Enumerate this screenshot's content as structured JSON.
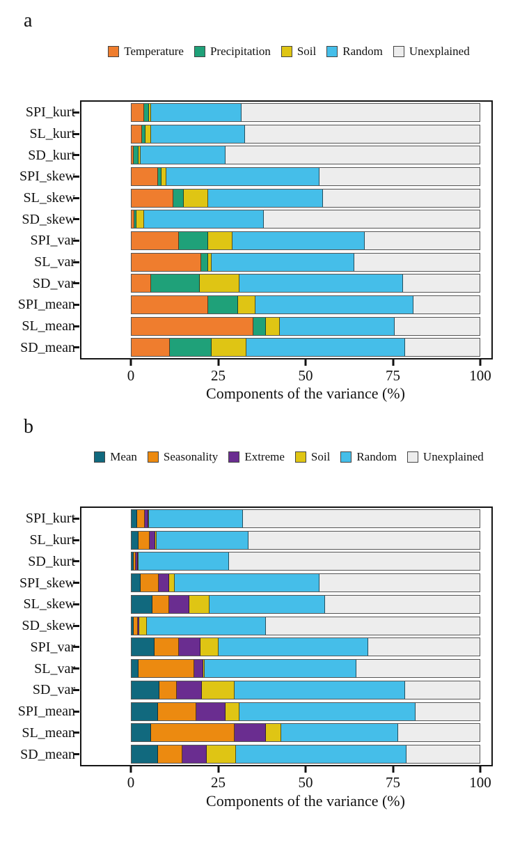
{
  "figure": {
    "panel_a_tag": "a",
    "panel_b_tag": "b"
  },
  "chart_data": [
    {
      "type": "bar",
      "orientation": "horizontal-stacked",
      "panel": "a",
      "xlabel": "Components of the variance (%)",
      "xlim": [
        0,
        100
      ],
      "x_ticks": [
        0,
        25,
        50,
        75,
        100
      ],
      "grid": false,
      "legend_position": "top",
      "categories_top_to_bottom": [
        "SPI_kurt",
        "SL_kurt",
        "SD_kurt",
        "SPI_skew",
        "SL_skew",
        "SD_skew",
        "SPI_var",
        "SL_var",
        "SD_var",
        "SPI_mean",
        "SL_mean",
        "SD_mean"
      ],
      "series": [
        {
          "name": "Temperature",
          "color": "#EF7D2E",
          "values": [
            3.5,
            3.0,
            0.5,
            7.5,
            12.0,
            0.7,
            13.5,
            20.0,
            5.5,
            22.0,
            35.0,
            11.0
          ]
        },
        {
          "name": "Precipitation",
          "color": "#1FA179",
          "values": [
            1.5,
            1.0,
            1.5,
            1.0,
            3.0,
            0.6,
            8.5,
            2.0,
            14.0,
            8.5,
            3.5,
            12.0
          ]
        },
        {
          "name": "Soil",
          "color": "#DFC514",
          "values": [
            0.5,
            1.5,
            0.5,
            1.5,
            7.0,
            2.2,
            7.0,
            1.0,
            11.5,
            5.0,
            4.0,
            10.0
          ]
        },
        {
          "name": "Random",
          "color": "#45BEE9",
          "values": [
            26.0,
            27.0,
            24.5,
            44.0,
            33.0,
            34.5,
            38.0,
            41.0,
            47.0,
            45.5,
            33.0,
            45.5
          ]
        },
        {
          "name": "Unexplained",
          "color": "#EDEDED",
          "values": [
            68.5,
            67.5,
            73.0,
            46.0,
            45.0,
            62.0,
            33.0,
            36.0,
            22.0,
            19.0,
            24.5,
            21.5
          ]
        }
      ]
    },
    {
      "type": "bar",
      "orientation": "horizontal-stacked",
      "panel": "b",
      "xlabel": "Components of the variance (%)",
      "xlim": [
        0,
        100
      ],
      "x_ticks": [
        0,
        25,
        50,
        75,
        100
      ],
      "grid": false,
      "legend_position": "top",
      "categories_top_to_bottom": [
        "SPI_kurt",
        "SL_kurt",
        "SD_kurt",
        "SPI_skew",
        "SL_skew",
        "SD_skew",
        "SPI_var",
        "SL_var",
        "SD_var",
        "SPI_mean",
        "SL_mean",
        "SD_mean"
      ],
      "series": [
        {
          "name": "Mean",
          "color": "#11697E",
          "values": [
            1.5,
            2.0,
            0.6,
            2.5,
            6.0,
            0.5,
            6.5,
            2.0,
            8.0,
            7.5,
            5.5,
            7.5
          ]
        },
        {
          "name": "Seasonality",
          "color": "#EC8A10",
          "values": [
            2.2,
            3.2,
            0.5,
            5.2,
            4.8,
            1.3,
            7.0,
            16.0,
            5.0,
            11.0,
            24.0,
            7.0
          ]
        },
        {
          "name": "Extreme",
          "color": "#6A2D90",
          "values": [
            1.0,
            1.5,
            0.6,
            3.1,
            5.7,
            0.4,
            6.2,
            2.5,
            7.2,
            8.5,
            9.0,
            7.0
          ]
        },
        {
          "name": "Soil",
          "color": "#DFC514",
          "values": [
            0.3,
            0.5,
            0.3,
            1.6,
            5.9,
            2.1,
            5.2,
            0.5,
            9.3,
            4.0,
            4.5,
            8.5
          ]
        },
        {
          "name": "Random",
          "color": "#45BEE9",
          "values": [
            27.0,
            26.3,
            26.0,
            41.6,
            33.1,
            34.2,
            43.0,
            43.5,
            49.0,
            50.5,
            33.5,
            49.0
          ]
        },
        {
          "name": "Unexplained",
          "color": "#EDEDED",
          "values": [
            68.0,
            66.5,
            72.0,
            46.0,
            44.5,
            61.5,
            32.1,
            35.5,
            21.5,
            18.5,
            23.5,
            21.0
          ]
        }
      ]
    }
  ]
}
